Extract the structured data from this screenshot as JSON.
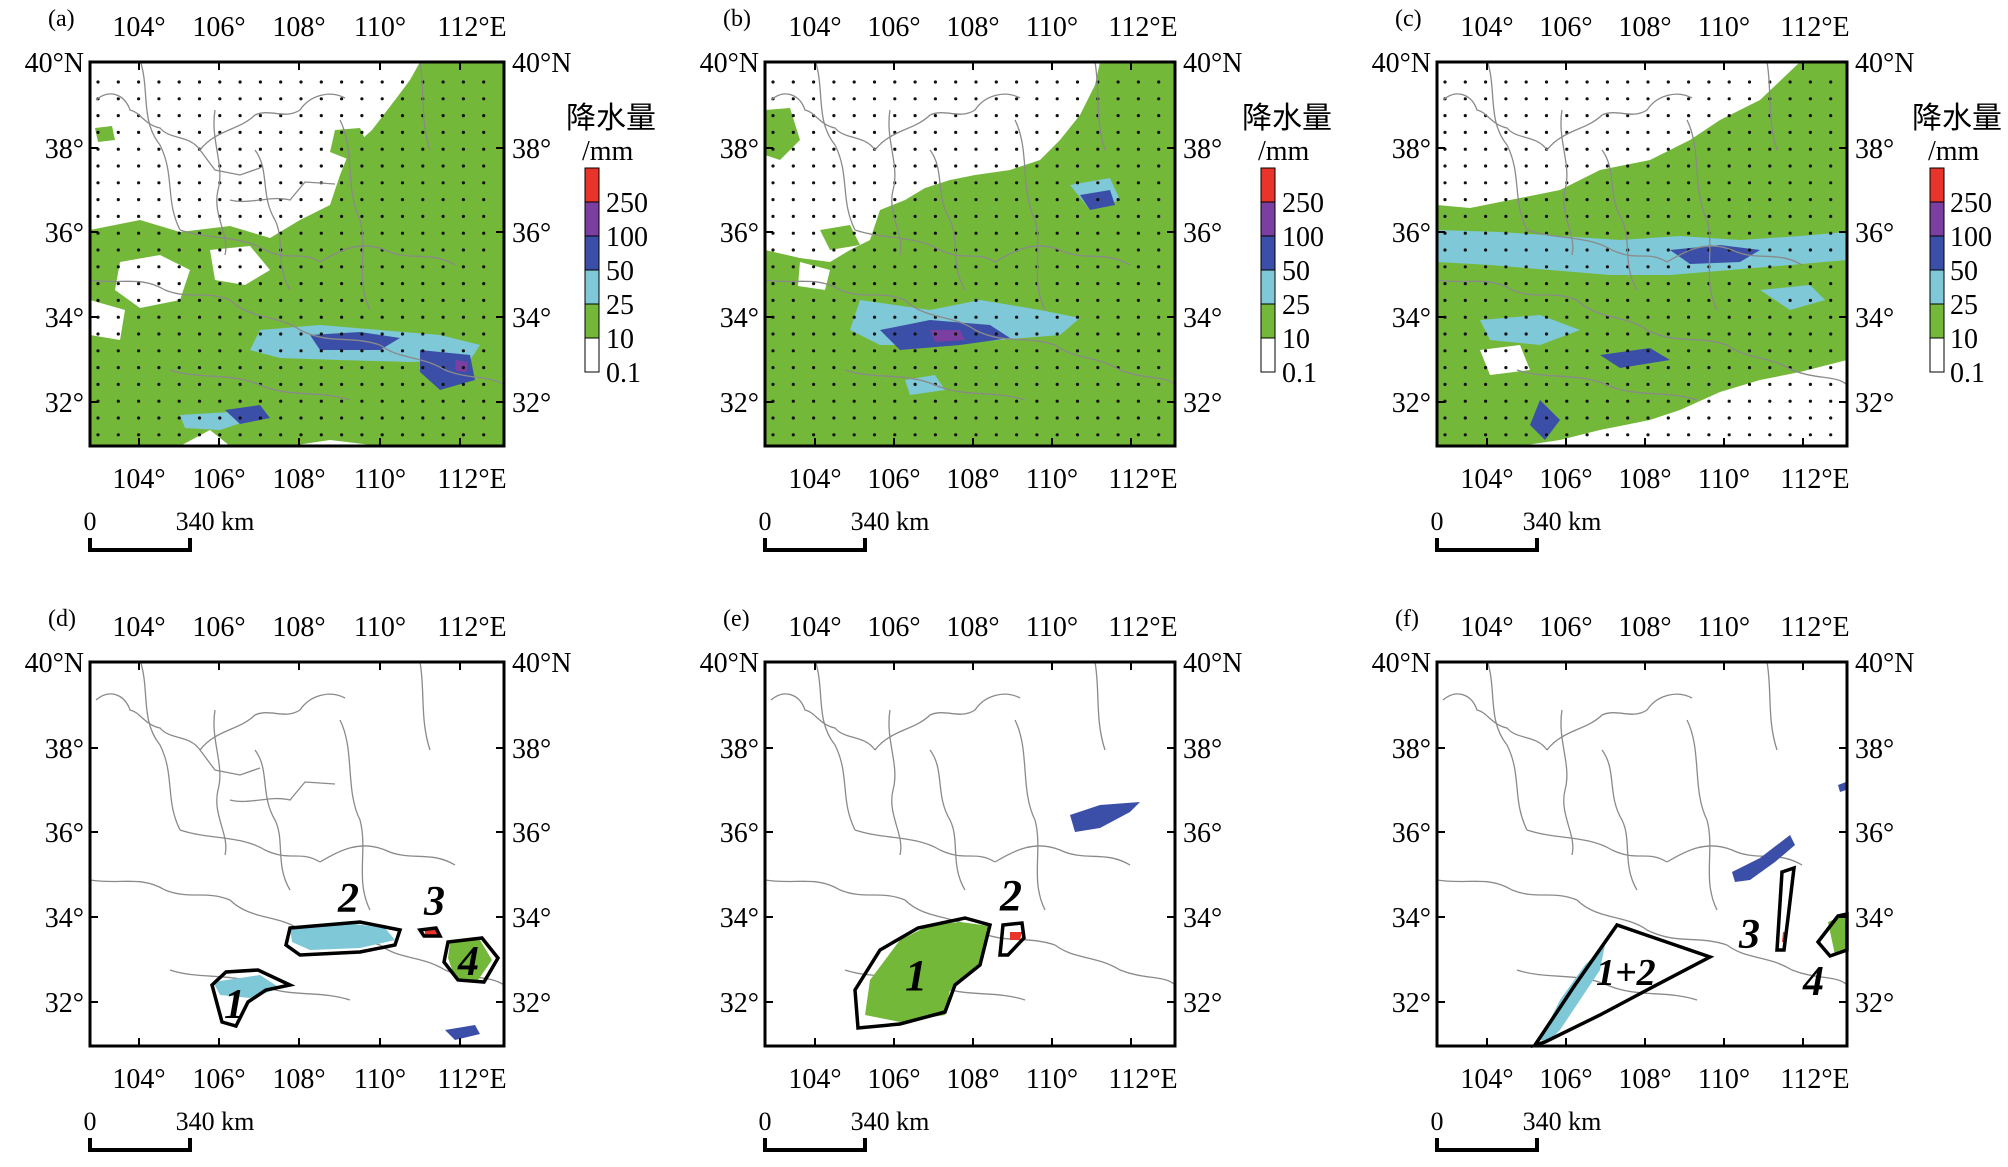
{
  "panels": [
    {
      "id": "a",
      "label": "(a)"
    },
    {
      "id": "b",
      "label": "(b)"
    },
    {
      "id": "c",
      "label": "(c)"
    },
    {
      "id": "d",
      "label": "(d)"
    },
    {
      "id": "e",
      "label": "(e)"
    },
    {
      "id": "f",
      "label": "(f)"
    }
  ],
  "axes": {
    "top_ticks": [
      "104°",
      "106°",
      "108°",
      "110°",
      "112°E"
    ],
    "bottom_ticks": [
      "104°",
      "106°",
      "108°",
      "110°",
      "112°E"
    ],
    "left_ticks": [
      "40°N",
      "38°",
      "36°",
      "34°",
      "32°"
    ],
    "right_ticks": [
      "40°N",
      "38°",
      "36°",
      "34°",
      "32°"
    ]
  },
  "scalebar": {
    "zero": "0",
    "distance": "340 km"
  },
  "legend": {
    "title_line1": "降水量",
    "title_line2": "/mm",
    "items": [
      {
        "label": "250",
        "color": "#e8342a"
      },
      {
        "label": "100",
        "color": "#7a3fa0"
      },
      {
        "label": "50",
        "color": "#3b4fa8"
      },
      {
        "label": "25",
        "color": "#7ec8d8"
      },
      {
        "label": "10",
        "color": "#74b83a"
      },
      {
        "label": "0.1",
        "color": "#ffffff"
      }
    ]
  },
  "colors": {
    "green": "#74b83a",
    "cyan": "#7ec8d8",
    "blue": "#3b4fa8",
    "purple": "#7a3fa0",
    "red": "#e8342a",
    "border": "#8a8a8a"
  },
  "region_labels": {
    "d": [
      "1",
      "2",
      "3",
      "4"
    ],
    "e": [
      "1",
      "2"
    ],
    "f": [
      "1+2",
      "3",
      "4"
    ]
  }
}
